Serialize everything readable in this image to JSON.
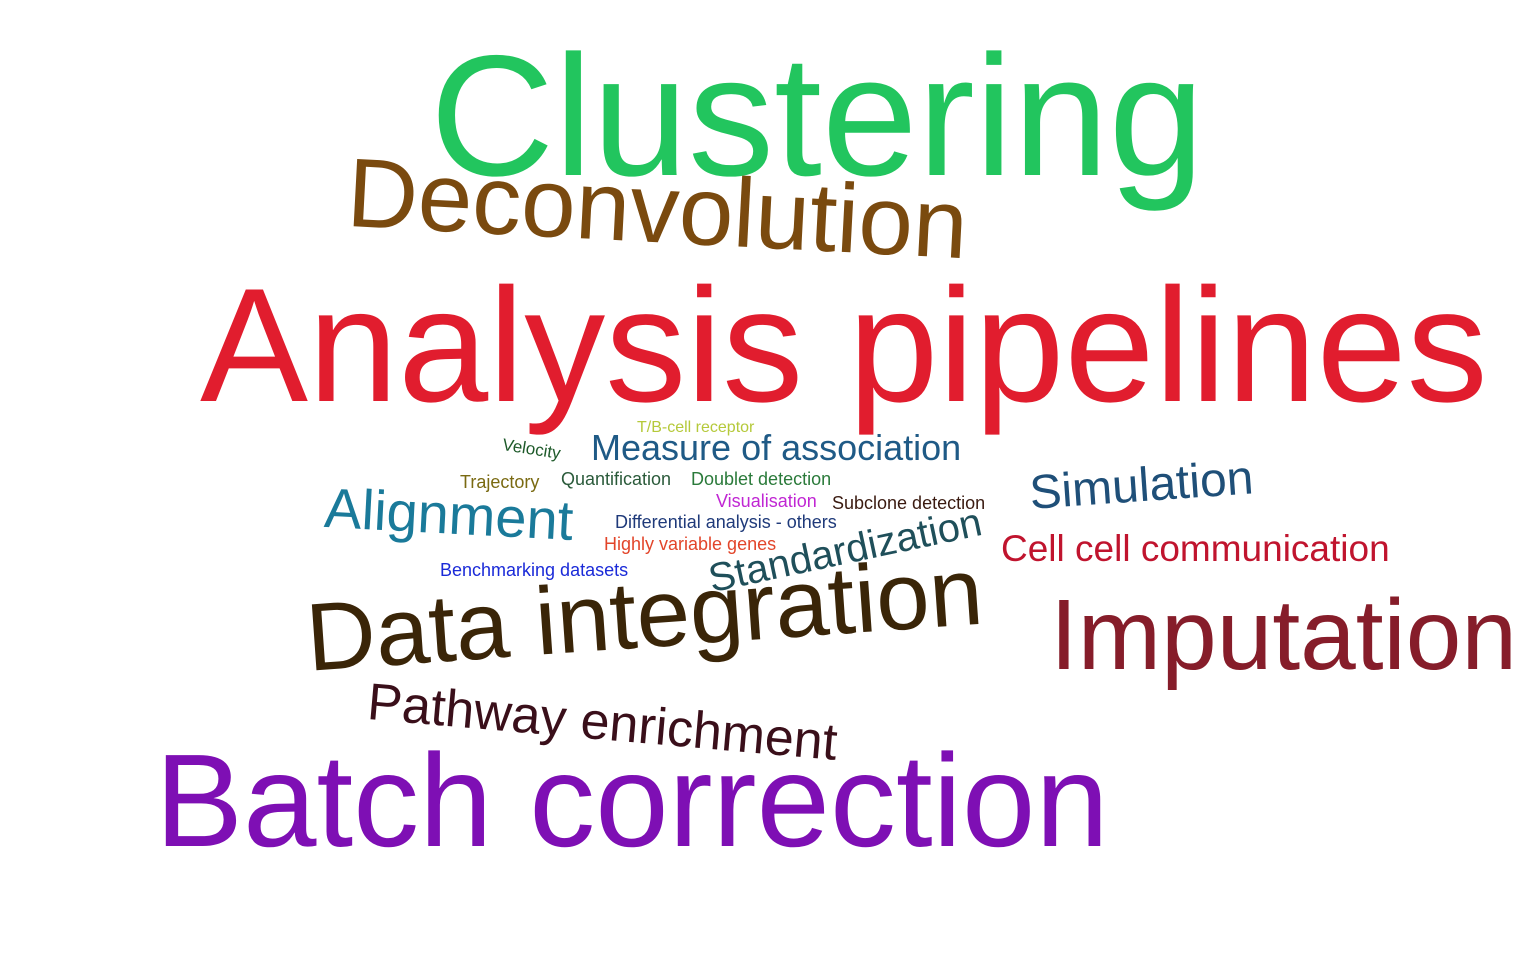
{
  "words": [
    {
      "id": "clustering",
      "text": "Clustering",
      "color": "#22c55e"
    },
    {
      "id": "deconvolution",
      "text": "Deconvolution",
      "color": "#7a4a0f"
    },
    {
      "id": "analysis-pipelines",
      "text": "Analysis pipelines",
      "color": "#e11d2e"
    },
    {
      "id": "tb-cell-receptor",
      "text": "T/B-cell receptor",
      "color": "#b5c93a"
    },
    {
      "id": "velocity",
      "text": "Velocity",
      "color": "#1e5a2a"
    },
    {
      "id": "measure-of-association",
      "text": "Measure of association",
      "color": "#1f5a86"
    },
    {
      "id": "trajectory",
      "text": "Trajectory",
      "color": "#7a6a12"
    },
    {
      "id": "quantification",
      "text": "Quantification",
      "color": "#2a5a3a"
    },
    {
      "id": "doublet-detection",
      "text": "Doublet detection",
      "color": "#2a7a3a"
    },
    {
      "id": "alignment",
      "text": "Alignment",
      "color": "#1a7a9a"
    },
    {
      "id": "visualisation",
      "text": "Visualisation",
      "color": "#c026d3"
    },
    {
      "id": "subclone-detection",
      "text": "Subclone detection",
      "color": "#3a1a10"
    },
    {
      "id": "simulation",
      "text": "Simulation",
      "color": "#1f4f78"
    },
    {
      "id": "differential-analysis-others",
      "text": "Differential analysis - others",
      "color": "#1f3a7a"
    },
    {
      "id": "highly-variable-genes",
      "text": "Highly variable genes",
      "color": "#e2452a"
    },
    {
      "id": "standardization",
      "text": "Standardization",
      "color": "#1f4f5a"
    },
    {
      "id": "cell-cell-communication",
      "text": "Cell cell communication",
      "color": "#c0142e"
    },
    {
      "id": "benchmarking-datasets",
      "text": "Benchmarking datasets",
      "color": "#1a2ad8"
    },
    {
      "id": "data-integration",
      "text": "Data integration",
      "color": "#3a2508"
    },
    {
      "id": "imputation",
      "text": "Imputation",
      "color": "#861d2a"
    },
    {
      "id": "pathway-enrichment",
      "text": "Pathway enrichment",
      "color": "#3a0f1a"
    },
    {
      "id": "batch-correction",
      "text": "Batch correction",
      "color": "#7e0fb4"
    }
  ]
}
